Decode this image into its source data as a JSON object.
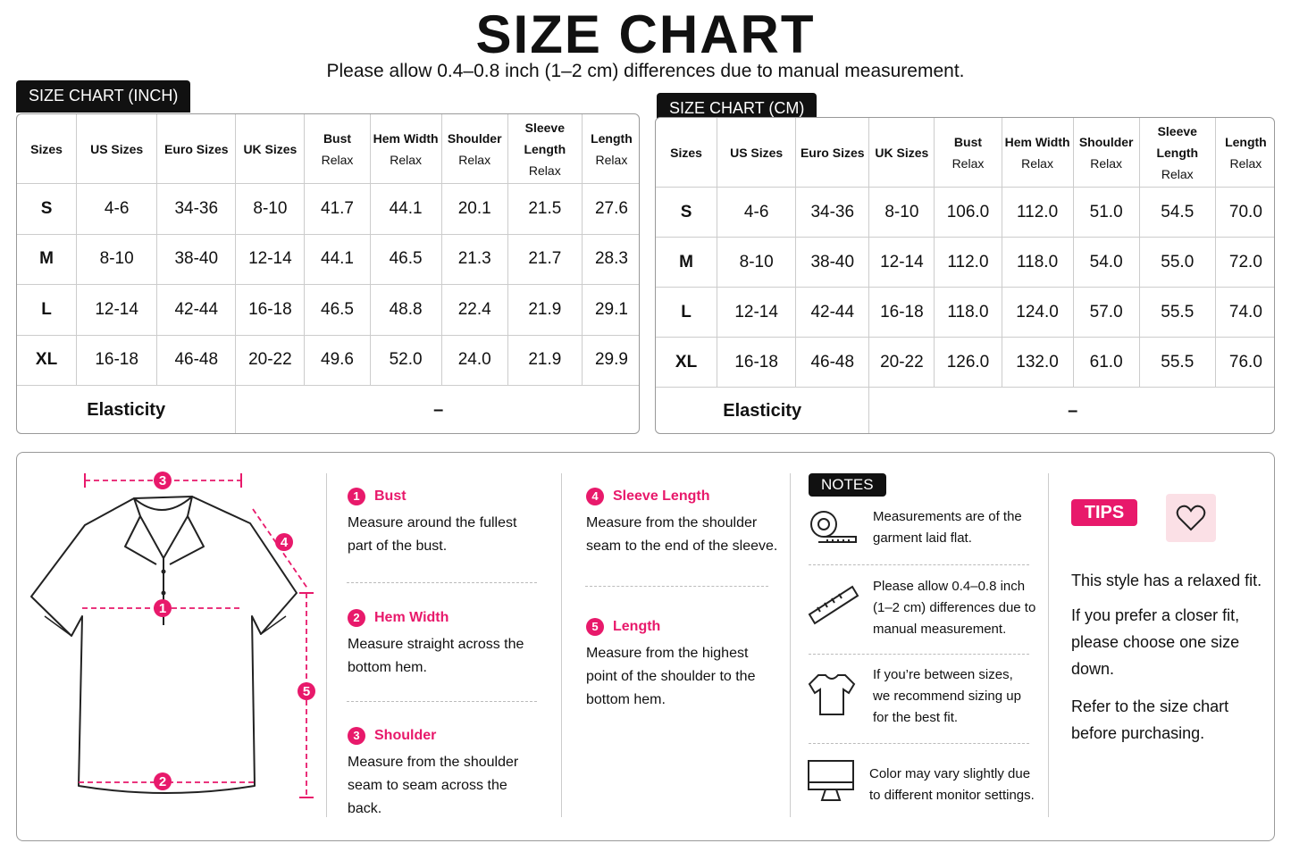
{
  "header": {
    "title": "SIZE CHART",
    "subtitle": "Please allow 0.4–0.8 inch (1–2 cm) differences due to manual measurement."
  },
  "tables": [
    {
      "label": "SIZE CHART (INCH)",
      "columns": [
        [
          "Sizes"
        ],
        [
          "US Sizes"
        ],
        [
          "Euro Sizes"
        ],
        [
          "UK Sizes"
        ],
        [
          "Bust",
          "Relax"
        ],
        [
          "Hem Width",
          "Relax"
        ],
        [
          "Shoulder",
          "Relax"
        ],
        [
          "Sleeve Length",
          "Relax"
        ],
        [
          "Length",
          "Relax"
        ]
      ],
      "rows": [
        [
          "S",
          "4-6",
          "34-36",
          "8-10",
          "41.7",
          "44.1",
          "20.1",
          "21.5",
          "27.6"
        ],
        [
          "M",
          "8-10",
          "38-40",
          "12-14",
          "44.1",
          "46.5",
          "21.3",
          "21.7",
          "28.3"
        ],
        [
          "L",
          "12-14",
          "42-44",
          "16-18",
          "46.5",
          "48.8",
          "22.4",
          "21.9",
          "29.1"
        ],
        [
          "XL",
          "16-18",
          "46-48",
          "20-22",
          "49.6",
          "52.0",
          "24.0",
          "21.9",
          "29.9"
        ]
      ],
      "elasticity": {
        "label": "Elasticity",
        "value": "–"
      }
    },
    {
      "label": "SIZE CHART (CM)",
      "columns": [
        [
          "Sizes"
        ],
        [
          "US Sizes"
        ],
        [
          "Euro Sizes"
        ],
        [
          "UK Sizes"
        ],
        [
          "Bust",
          "Relax"
        ],
        [
          "Hem Width",
          "Relax"
        ],
        [
          "Shoulder",
          "Relax"
        ],
        [
          "Sleeve Length",
          "Relax"
        ],
        [
          "Length",
          "Relax"
        ]
      ],
      "rows": [
        [
          "S",
          "4-6",
          "34-36",
          "8-10",
          "106.0",
          "112.0",
          "51.0",
          "54.5",
          "70.0"
        ],
        [
          "M",
          "8-10",
          "38-40",
          "12-14",
          "112.0",
          "118.0",
          "54.0",
          "55.0",
          "72.0"
        ],
        [
          "L",
          "12-14",
          "42-44",
          "16-18",
          "118.0",
          "124.0",
          "57.0",
          "55.5",
          "74.0"
        ],
        [
          "XL",
          "16-18",
          "46-48",
          "20-22",
          "126.0",
          "132.0",
          "61.0",
          "55.5",
          "76.0"
        ]
      ],
      "elasticity": {
        "label": "Elasticity",
        "value": "–"
      }
    }
  ],
  "guide": {
    "items": [
      {
        "number": "1",
        "title": "Bust",
        "text": "Measure around the fullest part of the bust."
      },
      {
        "number": "2",
        "title": "Hem Width",
        "text": "Measure straight across the bottom hem."
      },
      {
        "number": "3",
        "title": "Shoulder",
        "text": "Measure from the shoulder seam to seam across the back."
      },
      {
        "number": "4",
        "title": "Sleeve Length",
        "text": "Measure from the shoulder seam to the end of the sleeve."
      },
      {
        "number": "5",
        "title": "Length",
        "text": "Measure from the highest point of the shoulder to the bottom hem."
      }
    ]
  },
  "notes": {
    "label": "NOTES",
    "items": [
      "Measurements are of the garment laid flat.",
      "Please allow 0.4–0.8 inch (1–2 cm) differences due to manual measurement.",
      "If you’re between sizes, we recommend sizing up for the best fit.",
      "Color may vary slightly due to different monitor settings."
    ]
  },
  "tips": {
    "label": "TIPS",
    "paragraphs": [
      "This style has a relaxed fit.",
      "If you prefer a closer fit, please choose one size down.",
      "Refer to the size chart before purchasing."
    ]
  }
}
